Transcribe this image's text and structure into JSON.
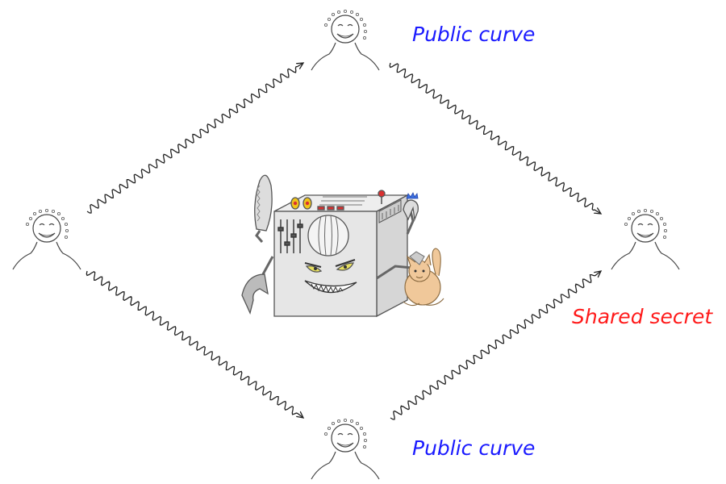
{
  "labels": {
    "top": "Public curve",
    "bottom": "Public curve",
    "right": "Shared secret"
  },
  "colors": {
    "public_label": "#1a1aff",
    "secret_label": "#ff1a1a",
    "line": "#222222",
    "machine_body": "#e6e6e6",
    "machine_outline": "#555555",
    "knob": "#f0c419",
    "button": "#d93030",
    "eye": "#e8e060",
    "cat": "#f0c89a"
  },
  "nodes": [
    {
      "id": "top-person",
      "icon": "person-icon"
    },
    {
      "id": "left-person",
      "icon": "person-icon"
    },
    {
      "id": "right-person",
      "icon": "person-icon"
    },
    {
      "id": "bottom-person",
      "icon": "person-icon"
    }
  ],
  "center_icon": "evil-robot-machine-icon",
  "companion_icon": "cat-icon"
}
